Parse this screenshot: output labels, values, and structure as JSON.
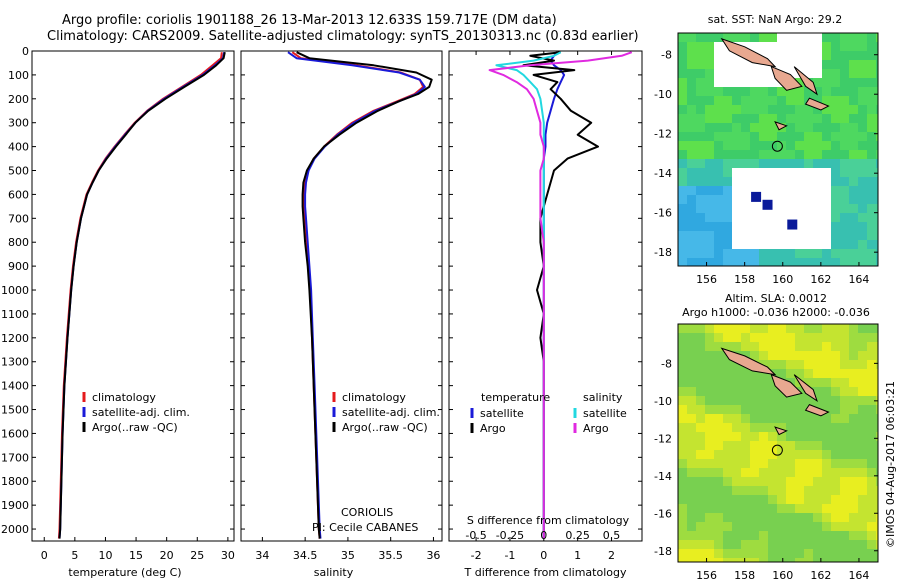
{
  "title": {
    "line1": "Argo profile: coriolis 1901188_26 13-Mar-2013 12.633S 159.717E (DM data)",
    "line2": "Climatology: CARS2009. Satellite-adjusted climatology: synTS_20130313.nc (0.83d earlier)"
  },
  "colors": {
    "climatology": "#e41a1c",
    "satellite": "#1a1ad8",
    "argo": "#000000",
    "sal_sat": "#22d8e0",
    "sal_argo": "#e02ae0",
    "land": "#e8a890",
    "sst_mid": "#3ed070",
    "sla_mid": "#b8e040"
  },
  "depth_axis": {
    "ylim": [
      0,
      2050
    ],
    "ticks": [
      0,
      100,
      200,
      300,
      400,
      500,
      600,
      700,
      800,
      900,
      1000,
      1100,
      1200,
      1300,
      1400,
      1500,
      1600,
      1700,
      1800,
      1900,
      2000
    ]
  },
  "chart_data": [
    {
      "type": "line",
      "name": "temperature",
      "xlabel": "temperature (deg C)",
      "xlim": [
        -2,
        31
      ],
      "xticks": [
        0,
        5,
        10,
        15,
        20,
        25,
        30
      ],
      "legend": [
        "climatology",
        "satellite-adj. clim.",
        "Argo(..raw -QC)"
      ],
      "depth": [
        5,
        30,
        60,
        100,
        150,
        200,
        250,
        300,
        350,
        400,
        450,
        500,
        550,
        600,
        700,
        800,
        900,
        1000,
        1200,
        1400,
        1600,
        1800,
        2000,
        2040
      ],
      "series": [
        {
          "name": "climatology",
          "color": "red",
          "values": [
            29.0,
            28.9,
            27.5,
            25.6,
            22.5,
            19.4,
            16.8,
            14.8,
            13.1,
            11.5,
            10.0,
            8.8,
            7.8,
            6.9,
            5.9,
            5.2,
            4.7,
            4.3,
            3.7,
            3.2,
            2.9,
            2.7,
            2.5,
            2.4
          ]
        },
        {
          "name": "satellite-adj. clim.",
          "color": "blue",
          "values": [
            29.4,
            29.2,
            27.9,
            25.9,
            22.7,
            19.6,
            16.9,
            14.9,
            13.2,
            11.6,
            10.1,
            8.9,
            7.9,
            7.0,
            6.0,
            5.3,
            4.8,
            4.4,
            3.8,
            3.3,
            3.0,
            2.8,
            2.6,
            2.5
          ]
        },
        {
          "name": "Argo(..raw -QC)",
          "color": "black",
          "values": [
            29.5,
            29.3,
            28.1,
            26.1,
            22.9,
            19.8,
            17.0,
            14.9,
            13.3,
            11.7,
            10.2,
            8.9,
            7.9,
            7.0,
            6.0,
            5.3,
            4.8,
            4.4,
            3.8,
            3.3,
            3.0,
            2.8,
            2.6,
            2.5
          ]
        }
      ]
    },
    {
      "type": "line",
      "name": "salinity",
      "xlabel": "salinity",
      "xlim": [
        33.75,
        36.1
      ],
      "xticks": [
        34,
        34.5,
        35,
        35.5,
        36
      ],
      "legend": [
        "climatology",
        "satellite-adj. clim.",
        "Argo(..raw -QC)"
      ],
      "annotation": [
        "CORIOLIS",
        "PI: Cecile CABANES"
      ],
      "depth": [
        5,
        30,
        60,
        90,
        120,
        150,
        180,
        210,
        250,
        300,
        350,
        400,
        450,
        500,
        550,
        600,
        650,
        700,
        800,
        900,
        1000,
        1200,
        1400,
        1600,
        1800,
        2000,
        2040
      ],
      "series": [
        {
          "name": "climatology",
          "color": "red",
          "values": [
            34.35,
            34.45,
            35.1,
            35.62,
            35.84,
            35.88,
            35.78,
            35.58,
            35.3,
            35.05,
            34.87,
            34.72,
            34.6,
            34.53,
            34.5,
            34.49,
            34.49,
            34.5,
            34.52,
            34.54,
            34.56,
            34.58,
            34.6,
            34.62,
            34.64,
            34.66,
            34.67
          ]
        },
        {
          "name": "satellite-adj. clim.",
          "color": "blue",
          "values": [
            34.3,
            34.4,
            35.05,
            35.6,
            35.84,
            35.9,
            35.8,
            35.6,
            35.32,
            35.07,
            34.88,
            34.73,
            34.61,
            34.54,
            34.51,
            34.5,
            34.5,
            34.51,
            34.53,
            34.55,
            34.57,
            34.59,
            34.61,
            34.63,
            34.65,
            34.67,
            34.68
          ]
        },
        {
          "name": "Argo(..raw -QC)",
          "color": "black",
          "values": [
            34.4,
            34.55,
            35.3,
            35.8,
            35.98,
            35.95,
            35.82,
            35.6,
            35.35,
            35.1,
            34.9,
            34.72,
            34.6,
            34.52,
            34.48,
            34.47,
            34.47,
            34.48,
            34.5,
            34.53,
            34.55,
            34.58,
            34.6,
            34.62,
            34.64,
            34.66,
            34.67
          ]
        }
      ]
    },
    {
      "type": "line",
      "name": "differences",
      "xlabel": "T difference from climatology",
      "xlim": [
        -2.8,
        2.9
      ],
      "xticks": [
        -2,
        -1,
        0,
        1,
        2
      ],
      "top_xlabel": "S difference from climatology",
      "top_xtick_labels": [
        "-0.5",
        "-0.25",
        "0",
        "0.25",
        "0.5"
      ],
      "legend_titles": [
        "temperature",
        "salinity"
      ],
      "legend": [
        "satellite",
        "Argo",
        "satellite",
        "Argo"
      ],
      "depth": [
        5,
        20,
        40,
        60,
        80,
        100,
        130,
        160,
        200,
        250,
        300,
        350,
        400,
        450,
        500,
        600,
        700,
        800,
        900,
        1000,
        1100,
        1200,
        1300,
        1400,
        1500,
        1600,
        1700,
        1800,
        1900,
        2000,
        2040
      ],
      "series": [
        {
          "name": "temperature satellite",
          "color": "blue",
          "values": [
            0.4,
            0.3,
            0.2,
            0.3,
            0.5,
            0.6,
            0.5,
            0.4,
            0.3,
            0.2,
            0.1,
            0.05,
            0.05,
            0.0,
            0.0,
            0.0,
            0.0,
            0.0,
            0.0,
            0.0,
            0.0,
            0.0,
            0.0,
            0.0,
            0.0,
            0.0,
            0.0,
            0.0,
            0.0,
            0.0,
            0.0
          ]
        },
        {
          "name": "temperature Argo",
          "color": "black",
          "values": [
            0.5,
            -0.4,
            0.3,
            -0.6,
            0.9,
            -0.3,
            0.4,
            0.2,
            0.5,
            0.8,
            1.4,
            1.0,
            1.6,
            0.7,
            0.3,
            0.1,
            -0.1,
            -0.1,
            0.0,
            -0.2,
            0.0,
            -0.1,
            0.0,
            0.0,
            0.0,
            0.0,
            0.0,
            0.0,
            0.0,
            0.0,
            0.0
          ]
        },
        {
          "name": "salinity satellite",
          "color": "cyan",
          "values": [
            0.5,
            0.3,
            -0.3,
            -1.4,
            -0.8,
            -0.6,
            -0.4,
            -0.2,
            -0.1,
            -0.05,
            0.0,
            0.0,
            0.0,
            0.0,
            0.0,
            0.0,
            0.0,
            0.0,
            0.0,
            0.0,
            0.0,
            0.0,
            0.0,
            0.0,
            0.0,
            0.0,
            0.0,
            0.0,
            0.0,
            0.0,
            0.0
          ]
        },
        {
          "name": "salinity Argo",
          "color": "magenta",
          "values": [
            2.6,
            2.3,
            1.3,
            -0.4,
            -1.6,
            -1.2,
            -0.8,
            -0.5,
            -0.3,
            -0.2,
            -0.1,
            -0.1,
            0.0,
            0.0,
            -0.1,
            -0.1,
            -0.1,
            0.0,
            0.0,
            0.0,
            0.0,
            0.0,
            0.0,
            0.0,
            0.0,
            0.0,
            0.0,
            0.0,
            0.0,
            0.0,
            0.0
          ]
        }
      ]
    },
    {
      "type": "heatmap",
      "name": "sst_map",
      "title": "sat. SST: NaN Argo: 29.2",
      "xlim": [
        154.5,
        165.0
      ],
      "ylim": [
        -18.7,
        -6.9
      ],
      "xticks": [
        156,
        158,
        160,
        162,
        164
      ],
      "yticks": [
        -8,
        -10,
        -12,
        -14,
        -16,
        -18
      ],
      "argo_position": [
        159.717,
        -12.633
      ]
    },
    {
      "type": "heatmap",
      "name": "sla_map",
      "title_lines": [
        "Altim. SLA: 0.0012",
        "Argo h1000: -0.036 h2000: -0.036"
      ],
      "xlim": [
        154.5,
        165.0
      ],
      "ylim": [
        -18.6,
        -5.9
      ],
      "xticks": [
        156,
        158,
        160,
        162,
        164
      ],
      "yticks": [
        -8,
        -10,
        -12,
        -14,
        -16,
        -18
      ],
      "argo_position": [
        159.717,
        -12.633
      ]
    }
  ],
  "credit": "©IMOS 04-Aug-2017 06:03:21"
}
